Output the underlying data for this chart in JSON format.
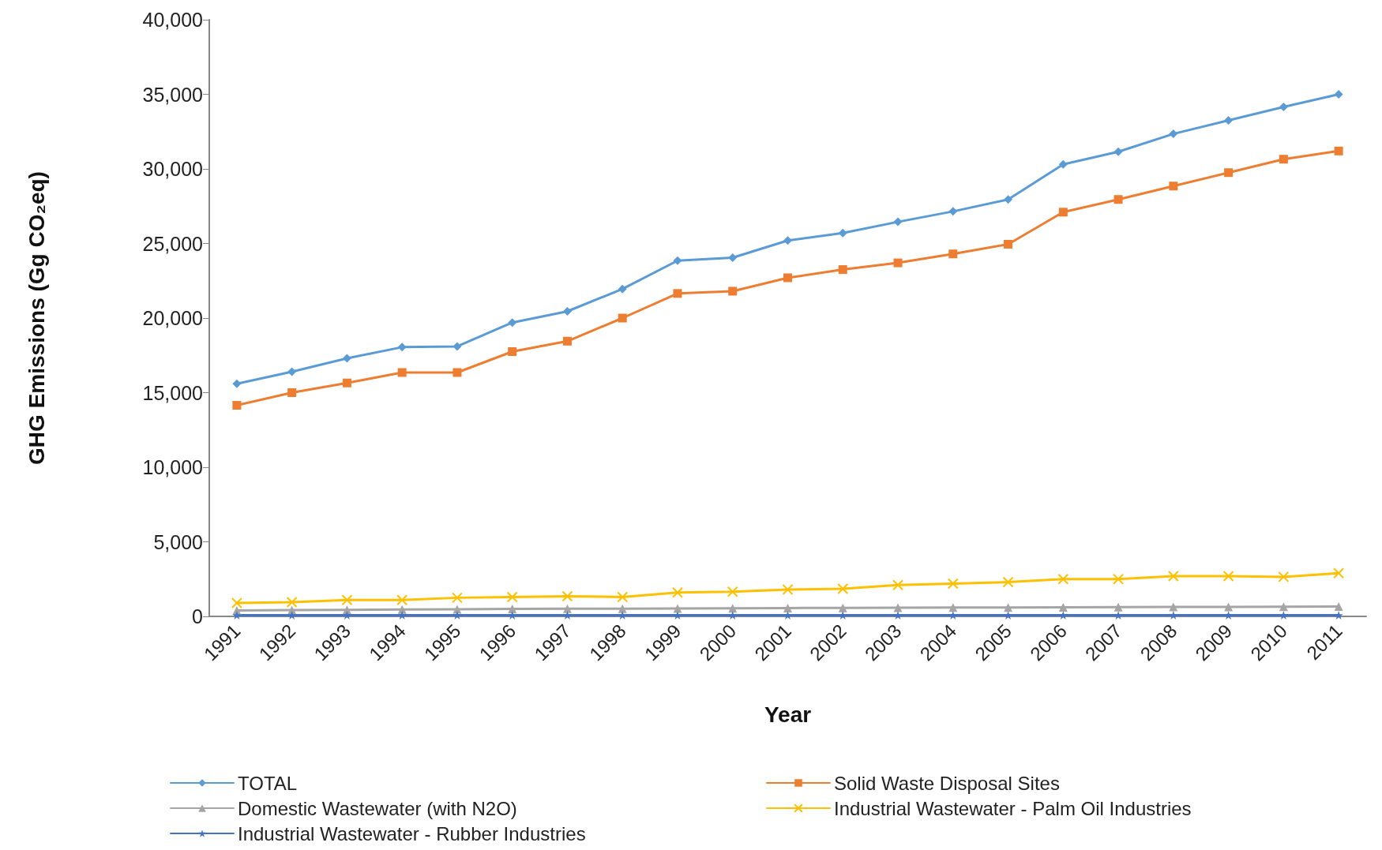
{
  "chart_data": {
    "type": "line",
    "xlabel": "Year",
    "ylabel": "GHG Emissions (Gg CO₂eq)",
    "categories": [
      "1991",
      "1992",
      "1993",
      "1994",
      "1995",
      "1996",
      "1997",
      "1998",
      "1999",
      "2000",
      "2001",
      "2002",
      "2003",
      "2004",
      "2005",
      "2006",
      "2007",
      "2008",
      "2009",
      "2010",
      "2011"
    ],
    "series": [
      {
        "name": "TOTAL",
        "color": "#5b9bd5",
        "marker": "diamond",
        "values": [
          15600,
          16400,
          17300,
          18050,
          18100,
          19700,
          20450,
          21950,
          23850,
          24050,
          25200,
          25700,
          26450,
          27150,
          27950,
          30300,
          31150,
          32350,
          33250,
          34150,
          35000
        ]
      },
      {
        "name": "Solid Waste Disposal Sites",
        "color": "#ed7d31",
        "marker": "square",
        "values": [
          14150,
          15000,
          15650,
          16350,
          16350,
          17750,
          18450,
          20000,
          21650,
          21800,
          22700,
          23250,
          23700,
          24300,
          24950,
          27100,
          27950,
          28850,
          29750,
          30650,
          31200
        ]
      },
      {
        "name": "Domestic Wastewater (with N2O)",
        "color": "#a5a5a5",
        "marker": "triangle",
        "values": [
          400,
          420,
          440,
          460,
          480,
          500,
          510,
          520,
          530,
          540,
          560,
          570,
          580,
          590,
          600,
          610,
          620,
          630,
          640,
          650,
          660
        ]
      },
      {
        "name": "Industrial Wastewater - Palm Oil Industries",
        "color": "#ffc000",
        "marker": "cross",
        "values": [
          900,
          950,
          1100,
          1100,
          1250,
          1300,
          1350,
          1300,
          1600,
          1650,
          1800,
          1850,
          2100,
          2200,
          2300,
          2500,
          2500,
          2700,
          2700,
          2650,
          2900
        ]
      },
      {
        "name": "Industrial Wastewater - Rubber Industries",
        "color": "#4472c4",
        "marker": "star",
        "values": [
          80,
          80,
          80,
          80,
          80,
          80,
          80,
          80,
          80,
          80,
          80,
          80,
          80,
          80,
          80,
          80,
          80,
          80,
          80,
          80,
          80
        ]
      }
    ],
    "ylim": [
      0,
      40000
    ],
    "yticks": [
      0,
      {
        "value": 5000,
        "label": "5,000"
      },
      {
        "value": 10000,
        "label": "10,000"
      },
      {
        "value": 15000,
        "label": "15,000"
      },
      {
        "value": 20000,
        "label": "20,000"
      },
      {
        "value": 25000,
        "label": "25,000"
      },
      {
        "value": 30000,
        "label": "30,000"
      },
      {
        "value": 35000,
        "label": "35,000"
      },
      {
        "value": 40000,
        "label": "40,000"
      }
    ],
    "grid": false,
    "legend": "bottom",
    "line_style": "solid"
  }
}
